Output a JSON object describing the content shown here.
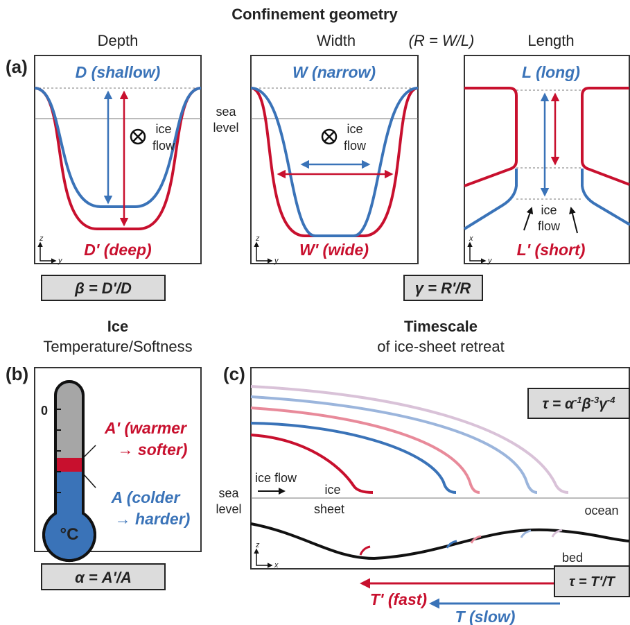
{
  "header": {
    "title": "Confinement geometry",
    "ratio_note": "(R = W/L)"
  },
  "panel_a": {
    "label": "(a)",
    "sea_level": [
      "sea",
      "level"
    ],
    "depth": {
      "heading": "Depth",
      "top": "D (shallow)",
      "bottom": "D' (deep)",
      "ice_flow": [
        "ice",
        "flow"
      ],
      "axes": [
        "z",
        "y"
      ],
      "formula": "β = D'/D"
    },
    "width": {
      "heading": "Width",
      "top": "W (narrow)",
      "bottom": "W' (wide)",
      "ice_flow": [
        "ice",
        "flow"
      ],
      "axes": [
        "z",
        "y"
      ],
      "formula": "γ = R'/R"
    },
    "length": {
      "heading": "Length",
      "top": "L (long)",
      "bottom": "L' (short)",
      "ice_flow": [
        "ice",
        "flow"
      ],
      "axes": [
        "x",
        "y"
      ]
    }
  },
  "panel_b": {
    "label": "(b)",
    "title": "Ice",
    "subtitle": "Temperature/Softness",
    "zero": "0",
    "unit": "°C",
    "warm": [
      "A' (warmer",
      "→ softer)"
    ],
    "cold": [
      "A (colder",
      "→ harder)"
    ],
    "formula": "α = A'/A"
  },
  "panel_c": {
    "label": "(c)",
    "title": "Timescale",
    "subtitle": "of ice-sheet retreat",
    "formula": {
      "parts": [
        "τ = α",
        "-1",
        "β",
        "-3",
        "γ",
        "-4"
      ]
    },
    "ice_flow": "ice flow",
    "ice_sheet": [
      "ice",
      "sheet"
    ],
    "sea_level": [
      "sea",
      "level"
    ],
    "ocean": "ocean",
    "bed": "bed",
    "axes": [
      "z",
      "x"
    ],
    "ratio": "τ = T'/T",
    "fast": "T' (fast)",
    "slow": "T (slow)"
  }
}
